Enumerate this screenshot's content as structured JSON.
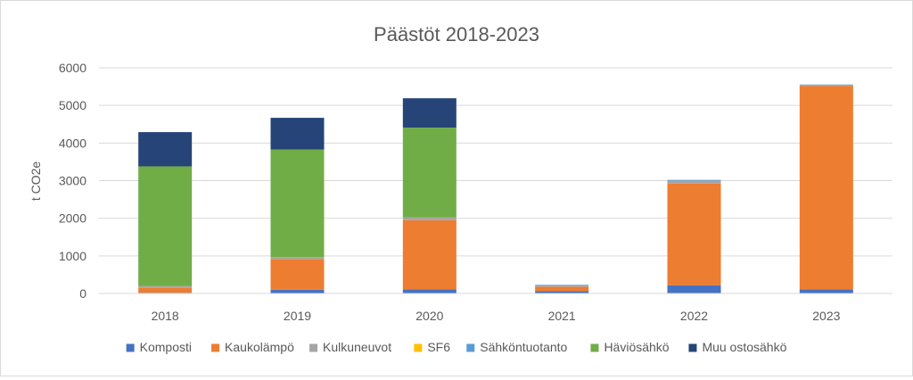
{
  "chart_data": {
    "type": "bar",
    "stacked": true,
    "title": "Päästöt 2018-2023",
    "xlabel": "",
    "ylabel": "t CO2e",
    "ylim": [
      0,
      6000
    ],
    "yticks": [
      "0",
      "1000",
      "2000",
      "3000",
      "4000",
      "5000",
      "6000"
    ],
    "grid": true,
    "legend_position": "bottom",
    "categories": [
      "2018",
      "2019",
      "2020",
      "2021",
      "2022",
      "2023"
    ],
    "series": [
      {
        "name": "Komposti",
        "color": "#4472c4",
        "values": [
          20,
          100,
          110,
          60,
          220,
          110
        ]
      },
      {
        "name": "Kaukolämpö",
        "color": "#ed7d31",
        "values": [
          130,
          820,
          1840,
          120,
          2700,
          5410
        ]
      },
      {
        "name": "Kulkuneuvot",
        "color": "#a5a5a5",
        "values": [
          50,
          50,
          70,
          30,
          80,
          20
        ]
      },
      {
        "name": "SF6",
        "color": "#ffc000",
        "values": [
          0,
          0,
          0,
          0,
          0,
          0
        ]
      },
      {
        "name": "Sähköntuotanto",
        "color": "#5b9bd5",
        "values": [
          0,
          0,
          0,
          20,
          20,
          15
        ]
      },
      {
        "name": "Häviösähkö",
        "color": "#70ad47",
        "values": [
          3180,
          2860,
          2390,
          0,
          0,
          0
        ]
      },
      {
        "name": "Muu ostosähkö",
        "color": "#264478",
        "values": [
          910,
          840,
          780,
          0,
          0,
          0
        ]
      }
    ]
  }
}
